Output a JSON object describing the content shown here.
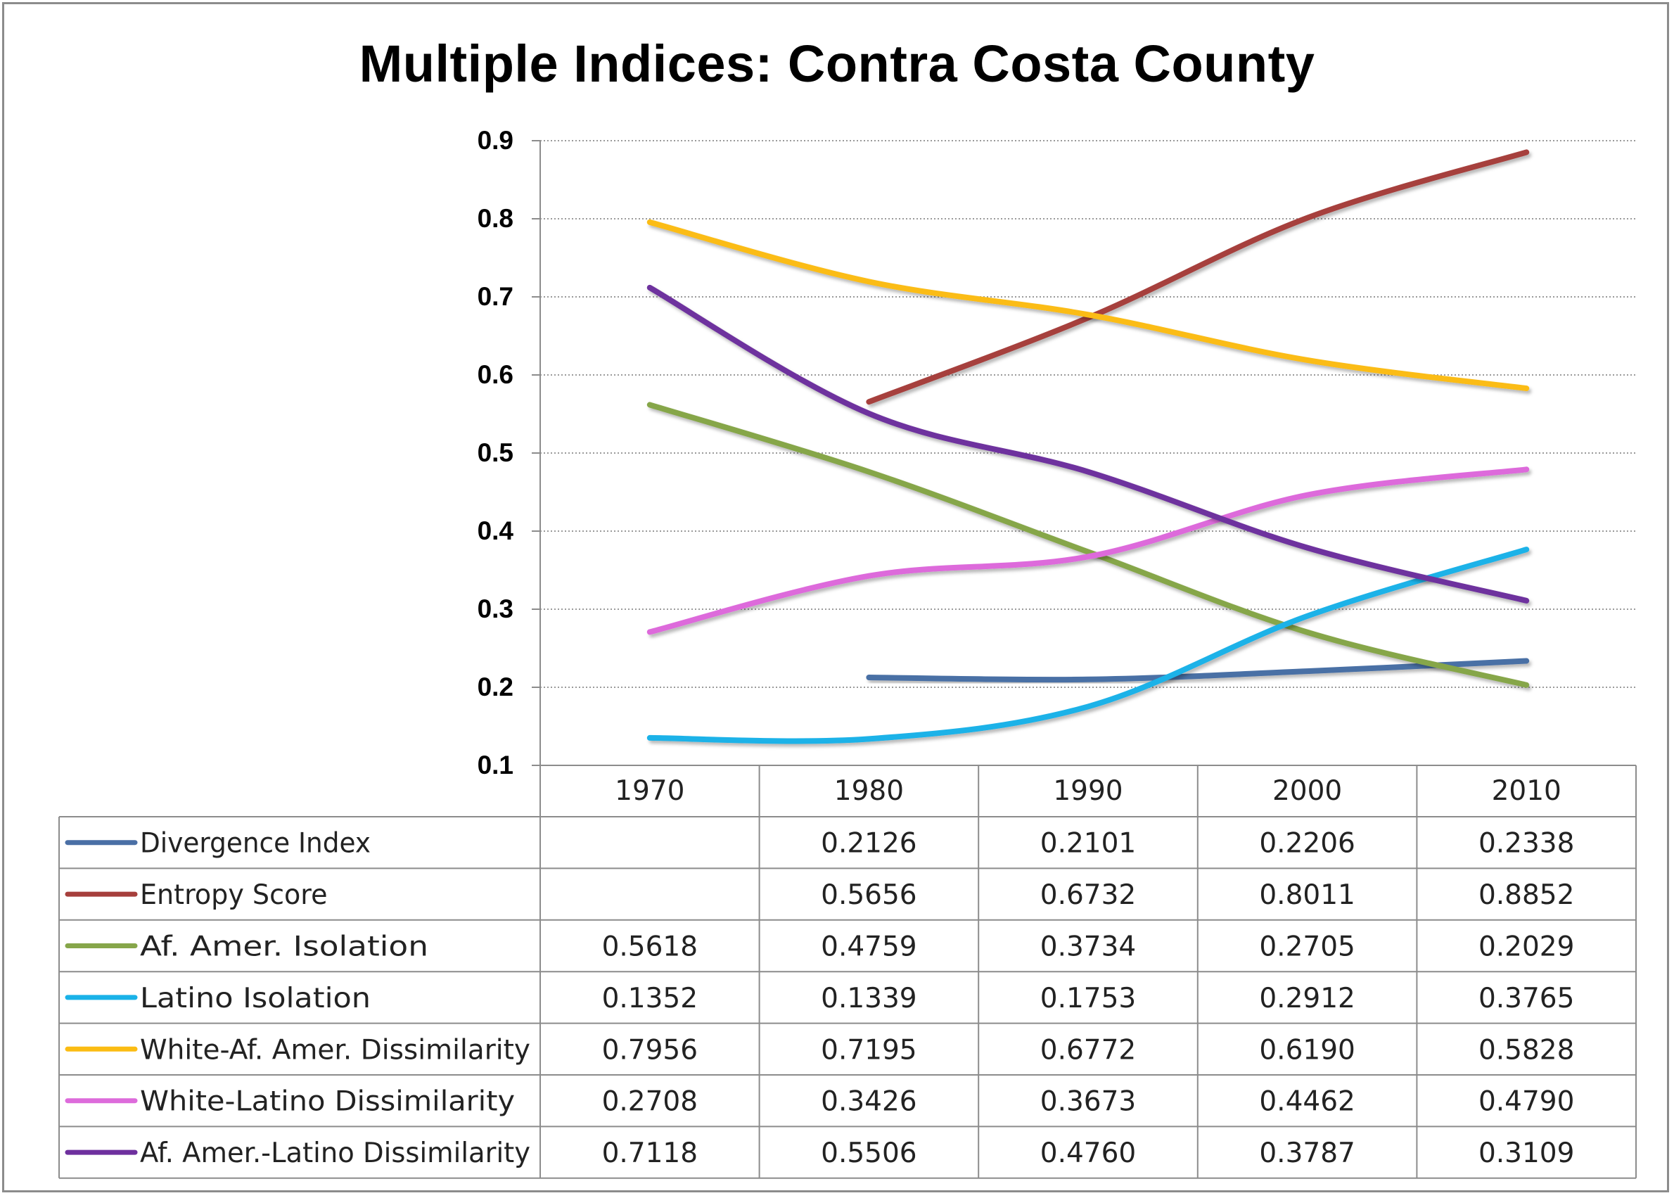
{
  "chart_data": {
    "type": "line",
    "title": "Multiple Indices: Contra Costa County",
    "categories": [
      "1970",
      "1980",
      "1990",
      "2000",
      "2010"
    ],
    "ylim": [
      0.1,
      0.9
    ],
    "yticks": [
      "0.1",
      "0.2",
      "0.3",
      "0.4",
      "0.5",
      "0.6",
      "0.7",
      "0.8",
      "0.9"
    ],
    "grid": true,
    "legend": "data-table",
    "smooth": true,
    "series": [
      {
        "name": "Divergence Index",
        "color": "#4a6fa5",
        "values": [
          null,
          0.2126,
          0.2101,
          0.2206,
          0.2338
        ],
        "labels": [
          "",
          "0.2126",
          "0.2101",
          "0.2206",
          "0.2338"
        ]
      },
      {
        "name": "Entropy Score",
        "color": "#a63f3c",
        "values": [
          null,
          0.5656,
          0.6732,
          0.8011,
          0.8852
        ],
        "labels": [
          "",
          "0.5656",
          "0.6732",
          "0.8011",
          "0.8852"
        ]
      },
      {
        "name": "Af. Amer.  Isolation",
        "color": "#86a64a",
        "values": [
          0.5618,
          0.4759,
          0.3734,
          0.2705,
          0.2029
        ],
        "labels": [
          "0.5618",
          "0.4759",
          "0.3734",
          "0.2705",
          "0.2029"
        ]
      },
      {
        "name": "Latino Isolation",
        "color": "#1ab2e8",
        "values": [
          0.1352,
          0.1339,
          0.1753,
          0.2912,
          0.3765
        ],
        "labels": [
          "0.1352",
          "0.1339",
          "0.1753",
          "0.2912",
          "0.3765"
        ]
      },
      {
        "name": "White-Af. Amer.  Dissimilarity",
        "color": "#fbbc13",
        "values": [
          0.7956,
          0.7195,
          0.6772,
          0.619,
          0.5828
        ],
        "labels": [
          "0.7956",
          "0.7195",
          "0.6772",
          "0.6190",
          "0.5828"
        ]
      },
      {
        "name": "White-Latino Dissimilarity",
        "color": "#dd6bdb",
        "values": [
          0.2708,
          0.3426,
          0.3673,
          0.4462,
          0.479
        ],
        "labels": [
          "0.2708",
          "0.3426",
          "0.3673",
          "0.4462",
          "0.4790"
        ]
      },
      {
        "name": "Af. Amer.-Latino Dissimilarity",
        "color": "#6e309e",
        "values": [
          0.7118,
          0.5506,
          0.476,
          0.3787,
          0.3109
        ],
        "labels": [
          "0.7118",
          "0.5506",
          "0.4760",
          "0.3787",
          "0.3109"
        ]
      }
    ]
  }
}
